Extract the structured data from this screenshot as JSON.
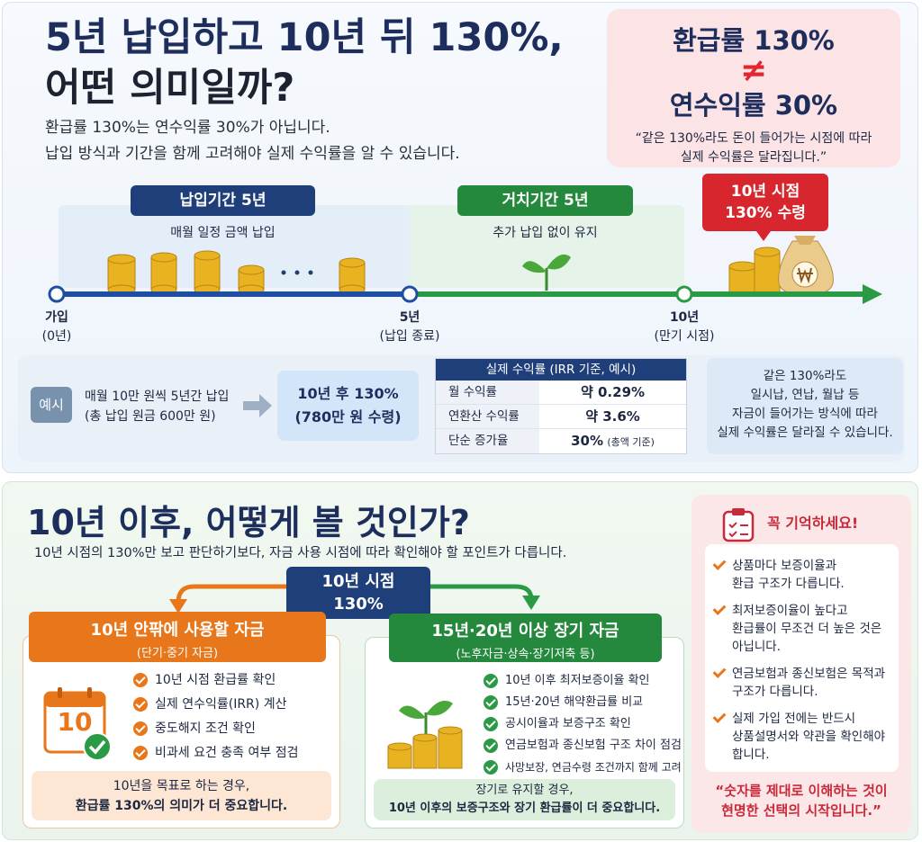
{
  "top": {
    "title": [
      "5년 납입하고 10년 뒤 130%,",
      "어떤 의미일까?"
    ],
    "intro": [
      "환급률 130%는 연수익률 30%가 아닙니다.",
      "납입 방식과 기간을 함께 고려해야 실제 수익률을 알 수 있습니다."
    ],
    "callout": {
      "line1": "환급률 130%",
      "sign": "≠",
      "line2": "연수익률 30%",
      "quote": [
        "“같은 130%라도 돈이 들어가는 시점에 따라",
        "실제 수익률은 달라집니다.”"
      ]
    },
    "timeline": {
      "pay": {
        "badge": "납입기간 5년",
        "desc": "매월 일정 금액 납입"
      },
      "hold": {
        "badge": "거치기간 5년",
        "desc": "추가 납입 없이 유지"
      },
      "payout": [
        "10년 시점",
        "130% 수령"
      ],
      "points": [
        {
          "label": "가입",
          "sub": "(0년)"
        },
        {
          "label": "5년",
          "sub": "(납입 종료)"
        },
        {
          "label": "10년",
          "sub": "(만기 시점)"
        }
      ]
    },
    "example": {
      "tag": "예시",
      "desc": [
        "매월 10만 원씩 5년간 납입",
        "(총 납입 원금 600만 원)"
      ],
      "result": [
        "10년 후 130%",
        "(780만 원 수령)"
      ]
    },
    "irr_table": {
      "header": "실제 수익률 (IRR 기준, 예시)",
      "rows": [
        [
          "월 수익률",
          "약 0.29%"
        ],
        [
          "연환산 수익률",
          "약 3.6%"
        ],
        [
          "단순 증가율",
          "30%",
          "(총액 기준)"
        ]
      ]
    },
    "note": [
      "같은 130%라도",
      "일시납, 연납, 월납 등",
      "자금이 들어가는 방식에 따라",
      "실제 수익률은 달라질 수 있습니다."
    ]
  },
  "bottom": {
    "title": "10년 이후, 어떻게 볼 것인가?",
    "subtitle": "10년 시점의 130%만 보고 판단하기보다, 자금 사용 시점에 따라 확인해야 할 포인트가 다릅니다.",
    "center": [
      "10년 시점",
      "130%"
    ],
    "calendar": "10",
    "left": {
      "title": "10년 안팎에 사용할 자금",
      "sub": "(단기·중기 자금)",
      "items": [
        "10년 시점 환급률 확인",
        "실제 연수익률(IRR) 계산",
        "중도해지 조건 확인",
        "비과세 요건 충족 여부 점검"
      ],
      "note": [
        "10년을 목표로 하는 경우,",
        "환급률 130%의 의미가 더 중요합니다."
      ]
    },
    "right": {
      "title": "15년·20년 이상 장기 자금",
      "sub": "(노후자금·상속·장기저축 등)",
      "items": [
        "10년 이후 최저보증이율 확인",
        "15년·20년 해약환급률 비교",
        "공시이율과 보증구조 확인",
        "연금보험과 종신보험 구조 차이 점검",
        "사망보장, 연금수령 조건까지 함께 고려"
      ],
      "note": [
        "장기로 유지할 경우,",
        "10년 이후의 보증구조와 장기 환급률이 더 중요합니다."
      ]
    },
    "remember": {
      "title": "꼭 기억하세요!",
      "items": [
        [
          "상품마다 보증이율과",
          "환급 구조가 다릅니다."
        ],
        [
          "최저보증이율이 높다고",
          "환급률이 무조건 더 높은 것은",
          "아닙니다."
        ],
        [
          "연금보험과 종신보험은 목적과",
          "구조가 다릅니다."
        ],
        [
          "실제 가입 전에는 반드시",
          "상품설명서와 약관을 확인해야",
          "합니다."
        ]
      ],
      "quote": [
        "“숫자를 제대로 이해하는 것이",
        "현명한 선택의 시작입니다.”"
      ]
    }
  }
}
